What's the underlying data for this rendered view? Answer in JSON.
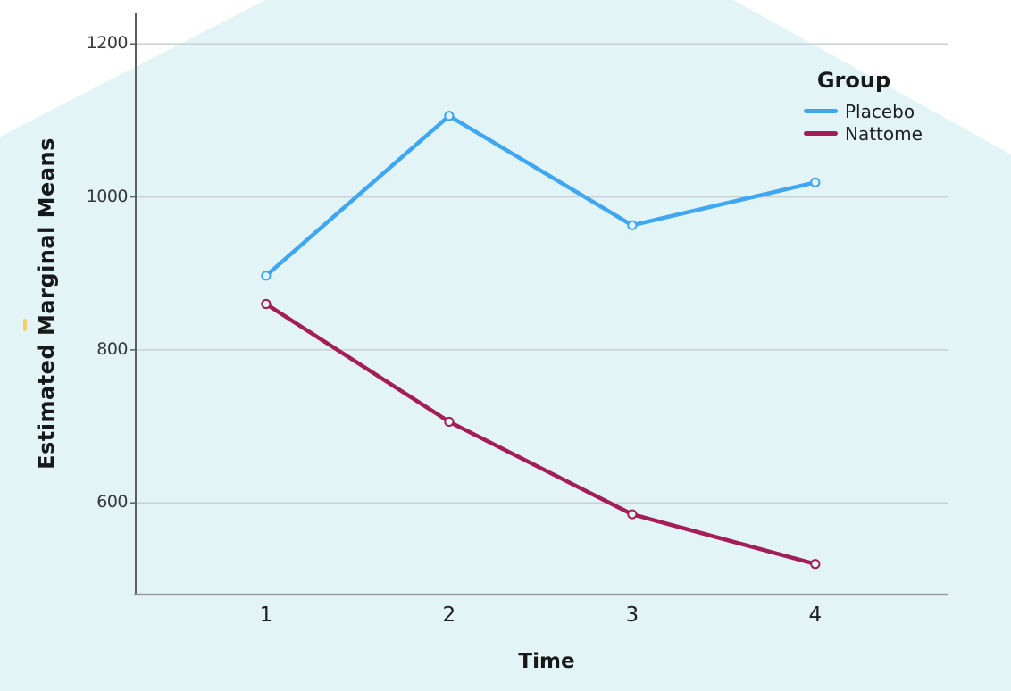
{
  "page": {
    "background_color": "#ffffff",
    "wedge_color": "#e3f4f6",
    "artifact_dash_color": "#efcf6e"
  },
  "chart_data": {
    "type": "line",
    "x": [
      "1",
      "2",
      "3",
      "4"
    ],
    "series": [
      {
        "name": "Placebo",
        "color": "#3fa6f2",
        "values": [
          897,
          1106,
          963,
          1019
        ]
      },
      {
        "name": "Nattome",
        "color": "#a31d56",
        "values": [
          860,
          706,
          585,
          520
        ]
      }
    ],
    "xlabel": "Time",
    "ylabel": "Estimated Marginal Means",
    "yticks": [
      600,
      800,
      1000,
      1200
    ],
    "ylim": [
      480,
      1240
    ],
    "legend_title": "Group",
    "legend_position": "top-right",
    "grid": "horizontal",
    "marker": "open-circle",
    "style": {
      "gridline_color": "#cacfd3",
      "y_axis_color": "#5e5e5e",
      "x_axis_color": "#9a9a9a",
      "line_width": 4.5
    }
  }
}
